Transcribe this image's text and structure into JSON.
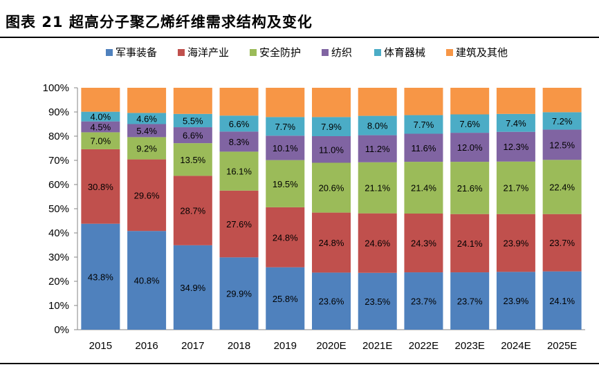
{
  "title": "图表 21 超高分子聚乙烯纤维需求结构及变化",
  "chart_data": {
    "type": "bar",
    "stacked": true,
    "percent_stacked": true,
    "categories": [
      "2015",
      "2016",
      "2017",
      "2018",
      "2019",
      "2020E",
      "2021E",
      "2022E",
      "2023E",
      "2024E",
      "2025E"
    ],
    "ylim": [
      0,
      100
    ],
    "y_ticks": [
      "0%",
      "10%",
      "20%",
      "30%",
      "40%",
      "50%",
      "60%",
      "70%",
      "80%",
      "90%",
      "100%"
    ],
    "legend_position": "top",
    "grid": false,
    "series": [
      {
        "name": "军事装备",
        "color": "#4F81BD",
        "labeled": true,
        "values": [
          43.8,
          40.8,
          34.9,
          29.9,
          25.8,
          23.6,
          23.5,
          23.7,
          23.7,
          23.9,
          24.1
        ]
      },
      {
        "name": "海洋产业",
        "color": "#C0504D",
        "labeled": true,
        "values": [
          30.8,
          29.6,
          28.7,
          27.6,
          24.8,
          24.8,
          24.6,
          24.3,
          24.1,
          23.9,
          23.7
        ]
      },
      {
        "name": "安全防护",
        "color": "#9BBB59",
        "labeled": true,
        "values": [
          7.0,
          9.2,
          13.5,
          16.1,
          19.5,
          20.6,
          21.1,
          21.4,
          21.6,
          21.7,
          22.4
        ]
      },
      {
        "name": "纺织",
        "color": "#8064A2",
        "labeled": true,
        "values": [
          4.5,
          5.4,
          6.6,
          8.3,
          10.1,
          11.0,
          11.2,
          11.6,
          12.0,
          12.3,
          12.5
        ]
      },
      {
        "name": "体育器械",
        "color": "#4BACC6",
        "labeled": true,
        "values": [
          4.0,
          4.6,
          5.5,
          6.6,
          7.7,
          7.9,
          8.0,
          7.7,
          7.6,
          7.4,
          7.2
        ]
      },
      {
        "name": "建筑及其他",
        "color": "#F79646",
        "labeled": false,
        "values": [
          9.9,
          10.4,
          10.8,
          11.5,
          12.1,
          12.1,
          11.6,
          11.3,
          11.0,
          10.8,
          10.1
        ]
      }
    ]
  }
}
